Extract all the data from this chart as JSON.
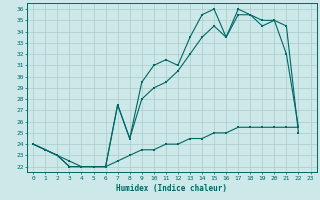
{
  "xlabel": "Humidex (Indice chaleur)",
  "bg_color": "#cce8e8",
  "grid_color": "#aacccc",
  "line_color": "#006666",
  "xlim": [
    -0.5,
    23.5
  ],
  "ylim": [
    21.5,
    36.5
  ],
  "xticks": [
    0,
    1,
    2,
    3,
    4,
    5,
    6,
    7,
    8,
    9,
    10,
    11,
    12,
    13,
    14,
    15,
    16,
    17,
    18,
    19,
    20,
    21,
    22,
    23
  ],
  "yticks": [
    22,
    23,
    24,
    25,
    26,
    27,
    28,
    29,
    30,
    31,
    32,
    33,
    34,
    35,
    36
  ],
  "line_max": [
    24.0,
    23.5,
    23.0,
    22.0,
    22.0,
    22.0,
    22.0,
    27.5,
    24.5,
    29.5,
    31.0,
    31.5,
    31.0,
    33.5,
    35.5,
    36.0,
    33.5,
    36.0,
    35.5,
    35.0,
    35.0,
    32.0,
    25.5
  ],
  "line_avg": [
    24.0,
    23.5,
    23.0,
    22.5,
    22.0,
    22.0,
    22.0,
    27.5,
    24.5,
    28.0,
    29.0,
    29.5,
    30.5,
    32.0,
    33.5,
    34.5,
    33.5,
    35.5,
    35.5,
    34.5,
    35.0,
    34.5,
    25.0
  ],
  "line_min": [
    24.0,
    23.5,
    23.0,
    22.0,
    22.0,
    22.0,
    22.0,
    22.5,
    23.0,
    23.5,
    23.5,
    24.0,
    24.0,
    24.5,
    24.5,
    25.0,
    25.0,
    25.5,
    25.5,
    25.5,
    25.5,
    25.5,
    25.5
  ],
  "x": [
    0,
    1,
    2,
    3,
    4,
    5,
    6,
    7,
    8,
    9,
    10,
    11,
    12,
    13,
    14,
    15,
    16,
    17,
    18,
    19,
    20,
    21,
    22
  ]
}
